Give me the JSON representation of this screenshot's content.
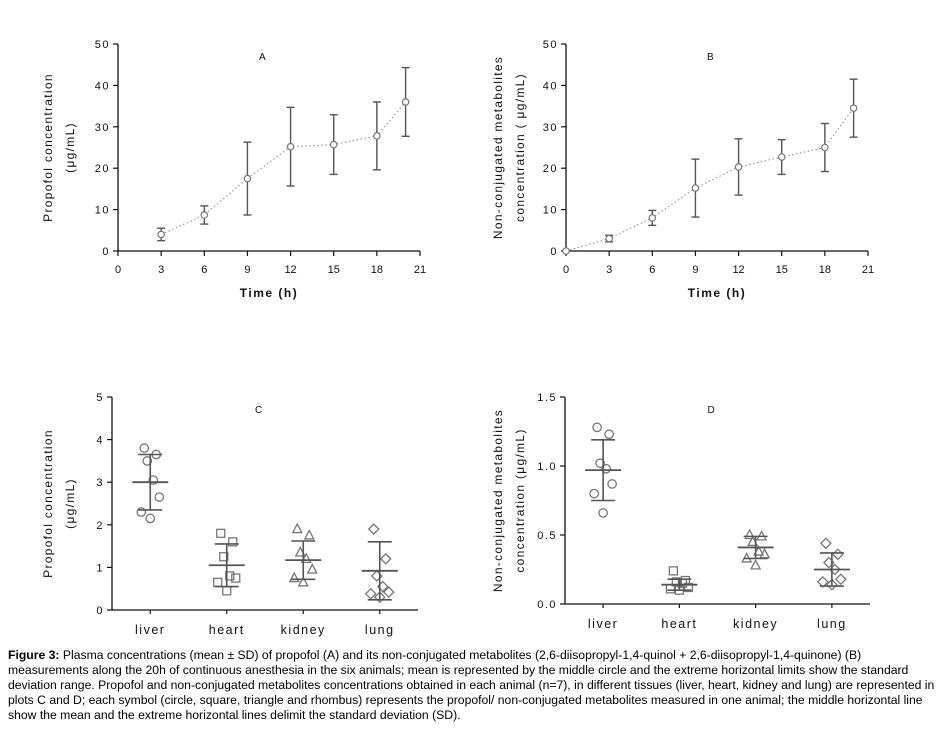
{
  "figure": {
    "caption_label": "Figure 3:",
    "caption_text": "Plasma concentrations (mean ± SD) of propofol (A) and its non-conjugated metabolites (2,6-diisopropyl-1,4-quinol + 2,6-diisopropyl-1,4-quinone) (B) measurements along the 20h of continuous anesthesia in the six animals; mean is represented by the middle circle and the extreme horizontal limits show the standard deviation range. Propofol and non-conjugated metabolites concentrations obtained in each animal (n=7), in different tissues (liver, heart, kidney and lung) are represented in plots C and D; each symbol (circle, square, triangle and rhombus) represents the propofol/ non-conjugated metabolites measured in one animal; the middle horizontal line show the mean and the extreme horizontal lines delimit the standard deviation (SD)."
  },
  "colors": {
    "axis": "#111111",
    "marker": "#777777",
    "errorbar": "#555555",
    "line": "#999999"
  },
  "chart_data": [
    {
      "id": "A",
      "type": "line",
      "panel_label": "A",
      "xlabel": "Time (h)",
      "ylabel_lines": [
        "Propofol concentration",
        "(μg/mL)"
      ],
      "xlim": [
        0,
        21
      ],
      "ylim": [
        0,
        50
      ],
      "xticks": [
        0,
        3,
        6,
        9,
        12,
        15,
        18,
        21
      ],
      "yticks": [
        0,
        10,
        20,
        30,
        40,
        50
      ],
      "x": [
        3,
        6,
        9,
        12,
        15,
        18,
        20
      ],
      "mean": [
        4,
        8.7,
        17.5,
        25.2,
        25.7,
        27.8,
        36
      ],
      "sd": [
        1.5,
        2.2,
        8.8,
        9.5,
        7.2,
        8.2,
        8.3
      ]
    },
    {
      "id": "B",
      "type": "line",
      "panel_label": "B",
      "xlabel": "Time (h)",
      "ylabel_lines": [
        "Non-conjugated metabolites",
        "concentration ( μg/mL)"
      ],
      "xlim": [
        0,
        21
      ],
      "ylim": [
        0,
        50
      ],
      "xticks": [
        0,
        3,
        6,
        9,
        12,
        15,
        18,
        21
      ],
      "yticks": [
        0,
        10,
        20,
        30,
        40,
        50
      ],
      "x": [
        0,
        3,
        6,
        9,
        12,
        15,
        18,
        20
      ],
      "mean": [
        0,
        3,
        8,
        15.2,
        20.3,
        22.7,
        25,
        34.5
      ],
      "sd": [
        0,
        0.8,
        1.8,
        7,
        6.8,
        4.2,
        5.8,
        7
      ]
    },
    {
      "id": "C",
      "type": "scatter",
      "panel_label": "C",
      "xlabel": "",
      "ylabel_lines": [
        "Propofol concentration",
        "(μg/mL)"
      ],
      "ylim": [
        0,
        5
      ],
      "yticks": [
        0,
        1,
        2,
        3,
        4,
        5
      ],
      "categories": [
        "liver",
        "heart",
        "kidney",
        "lung"
      ],
      "markers": [
        "circle",
        "square",
        "triangle",
        "diamond"
      ],
      "points": [
        [
          3.8,
          3.65,
          3.5,
          3.05,
          2.65,
          2.3,
          2.15
        ],
        [
          1.8,
          1.6,
          1.25,
          0.8,
          0.75,
          0.65,
          0.45
        ],
        [
          1.9,
          1.75,
          1.35,
          1.2,
          0.95,
          0.75,
          0.65
        ],
        [
          1.9,
          1.2,
          0.8,
          0.55,
          0.42,
          0.38,
          0.3
        ]
      ],
      "mean": [
        3.0,
        1.05,
        1.17,
        0.92
      ],
      "sd": [
        0.65,
        0.5,
        0.45,
        0.68
      ]
    },
    {
      "id": "D",
      "type": "scatter",
      "panel_label": "D",
      "xlabel": "",
      "ylabel_lines": [
        "Non-conjugated metabolites",
        "concentration (μg/mL)"
      ],
      "ylim": [
        0,
        1.5
      ],
      "yticks": [
        0,
        0.5,
        1.0,
        1.5
      ],
      "ytick_labels": [
        "0.0",
        "0.5",
        "1.0",
        "1.5"
      ],
      "categories": [
        "liver",
        "heart",
        "kidney",
        "lung"
      ],
      "markers": [
        "circle",
        "square",
        "triangle",
        "diamond"
      ],
      "points": [
        [
          1.28,
          1.23,
          1.02,
          0.98,
          0.87,
          0.8,
          0.66
        ],
        [
          0.24,
          0.17,
          0.16,
          0.15,
          0.12,
          0.11,
          0.1
        ],
        [
          0.5,
          0.49,
          0.45,
          0.38,
          0.36,
          0.33,
          0.28
        ],
        [
          0.44,
          0.36,
          0.3,
          0.25,
          0.18,
          0.16,
          0.14
        ]
      ],
      "mean": [
        0.97,
        0.14,
        0.41,
        0.25
      ],
      "sd": [
        0.22,
        0.04,
        0.08,
        0.12
      ]
    }
  ]
}
